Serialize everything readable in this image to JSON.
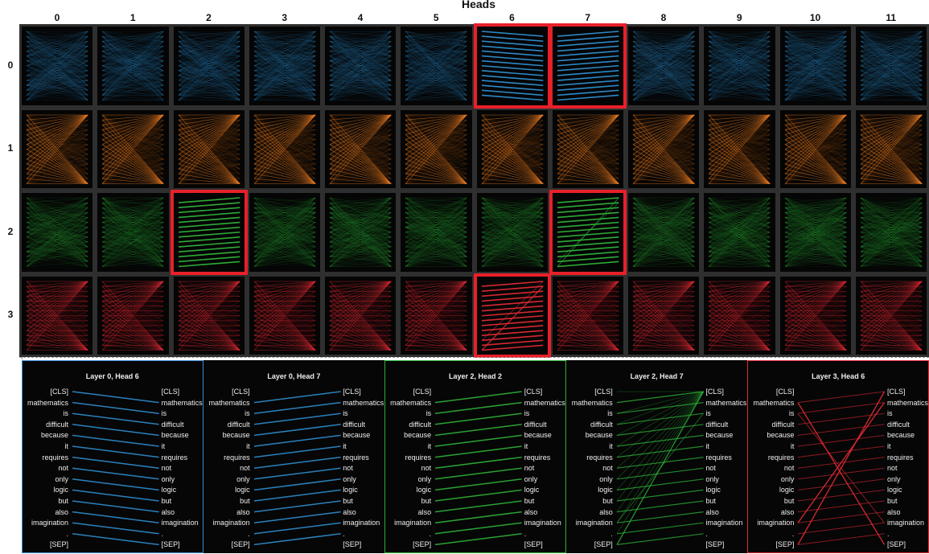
{
  "title": "Heads",
  "heads": [
    "0",
    "1",
    "2",
    "3",
    "4",
    "5",
    "6",
    "7",
    "8",
    "9",
    "10",
    "11"
  ],
  "layers": [
    "0",
    "1",
    "2",
    "3"
  ],
  "layer_colors": [
    "#2f8fd0",
    "#f07d22",
    "#2fb43a",
    "#e02a34"
  ],
  "highlighted_cells": [
    {
      "layer": 0,
      "head": 6
    },
    {
      "layer": 0,
      "head": 7
    },
    {
      "layer": 2,
      "head": 2
    },
    {
      "layer": 2,
      "head": 7
    },
    {
      "layer": 3,
      "head": 6
    }
  ],
  "tokens": [
    "[CLS]",
    "mathematics",
    "is",
    "difficult",
    "because",
    "it",
    "requires",
    "not",
    "only",
    "logic",
    "but",
    "also",
    "imagination",
    ".",
    "[SEP]"
  ],
  "panels": [
    {
      "title": "Layer 0, Head 6",
      "color": "#2f8fd0",
      "border": "#3b8fd8",
      "pattern": "next"
    },
    {
      "title": "Layer 0, Head 7",
      "color": "#2f8fd0",
      "border": "#000000",
      "pattern": "prev"
    },
    {
      "title": "Layer 2, Head 2",
      "color": "#2fb43a",
      "border": "#2fb43a",
      "pattern": "prev"
    },
    {
      "title": "Layer 2, Head 7",
      "color": "#2fb43a",
      "border": "#000000",
      "pattern": "mixed"
    },
    {
      "title": "Layer 3, Head 6",
      "color": "#e02a34",
      "border": "#e02a34",
      "pattern": "cross"
    }
  ]
}
